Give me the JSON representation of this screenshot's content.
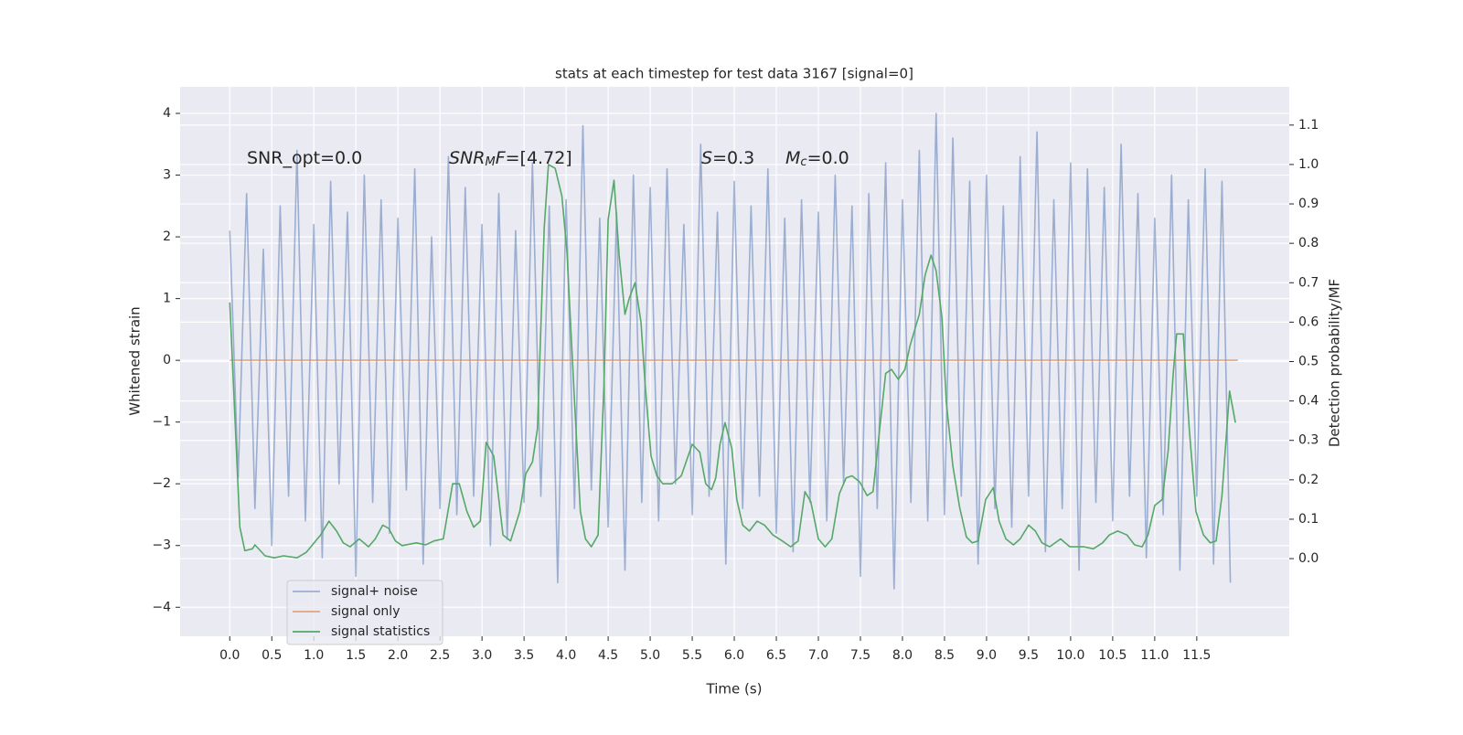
{
  "chart_data": {
    "type": "line",
    "title": "stats at each timestep for test data 3167 [signal=0]",
    "xlabel": "Time (s)",
    "ylabel": "Whitened strain",
    "y2label": "Detection probability/MF",
    "xlim": [
      -0.59,
      12.6
    ],
    "ylim": [
      -4.47,
      4.43
    ],
    "y2lim": [
      -0.197,
      1.197
    ],
    "xticks": [
      {
        "value": 0,
        "label": "0.0"
      },
      0.5,
      {
        "value": 1,
        "label": "1.0"
      },
      1.5,
      {
        "value": 2,
        "label": "2.0"
      },
      2.5,
      {
        "value": 3,
        "label": "3.0"
      },
      3.5,
      {
        "value": 4,
        "label": "4.0"
      },
      4.5,
      {
        "value": 5,
        "label": "5.0"
      },
      5.5,
      {
        "value": 6,
        "label": "6.0"
      },
      6.5,
      {
        "value": 7,
        "label": "7.0"
      },
      7.5,
      {
        "value": 8,
        "label": "8.0"
      },
      8.5,
      {
        "value": 9,
        "label": "9.0"
      },
      9.5,
      {
        "value": 10,
        "label": "10.0"
      },
      10.5,
      {
        "value": 11,
        "label": "11.0"
      },
      11.5
    ],
    "yticks": [
      {
        "value": -4,
        "label": "−4"
      },
      {
        "value": -3,
        "label": "−3"
      },
      {
        "value": -2,
        "label": "−2"
      },
      {
        "value": -1,
        "label": "−1"
      },
      0,
      1,
      2,
      3,
      4
    ],
    "y2ticks": [
      {
        "value": 0,
        "label": "0.0"
      },
      0.1,
      0.2,
      0.3,
      0.4,
      0.5,
      0.6,
      0.7,
      0.8,
      0.9,
      {
        "value": 1,
        "label": "1.0"
      },
      1.1
    ],
    "grid": true,
    "annotations": [
      [
        {
          "text": "SNR_opt=0.0",
          "style": "normal"
        }
      ],
      [
        {
          "text": "SNR",
          "style": "italic"
        },
        {
          "text": "M",
          "style": "sub"
        },
        {
          "text": "F",
          "style": "italic"
        },
        {
          "text": "=[4.72]",
          "style": "normal"
        }
      ],
      [
        {
          "text": "S",
          "style": "italic"
        },
        {
          "text": "=0.3",
          "style": "normal"
        }
      ],
      [
        {
          "text": "M",
          "style": "italic"
        },
        {
          "text": "c",
          "style": "sub"
        },
        {
          "text": "=0.0",
          "style": "normal"
        }
      ]
    ],
    "series": [
      {
        "name": "signal+ noise",
        "color": "#4c72b0",
        "opacity": 0.5,
        "x": [
          0,
          0.1,
          0.2,
          0.3,
          0.4,
          0.5,
          0.6,
          0.7,
          0.8,
          0.9,
          1,
          1.1,
          1.2,
          1.3,
          1.4,
          1.5,
          1.6,
          1.7,
          1.8,
          1.9,
          2,
          2.1,
          2.2,
          2.3,
          2.4,
          2.5,
          2.6,
          2.7,
          2.8,
          2.9,
          3,
          3.1,
          3.2,
          3.3,
          3.4,
          3.5,
          3.6,
          3.7,
          3.8,
          3.9,
          4,
          4.1,
          4.2,
          4.3,
          4.4,
          4.5,
          4.6,
          4.7,
          4.8,
          4.9,
          5,
          5.1,
          5.2,
          5.3,
          5.4,
          5.5,
          5.6,
          5.7,
          5.8,
          5.9,
          6,
          6.1,
          6.2,
          6.3,
          6.4,
          6.5,
          6.6,
          6.7,
          6.8,
          6.9,
          7,
          7.1,
          7.2,
          7.3,
          7.4,
          7.5,
          7.6,
          7.7,
          7.8,
          7.9,
          8,
          8.1,
          8.2,
          8.3,
          8.4,
          8.5,
          8.6,
          8.7,
          8.8,
          8.9,
          9,
          9.1,
          9.2,
          9.3,
          9.4,
          9.5,
          9.6,
          9.7,
          9.8,
          9.9,
          10,
          10.1,
          10.2,
          10.3,
          10.4,
          10.5,
          10.6,
          10.7,
          10.8,
          10.9,
          11,
          11.1,
          11.2,
          11.3,
          11.4,
          11.5,
          11.6,
          11.7,
          11.8,
          11.9
        ],
        "values": [
          2.1,
          -1.9,
          2.7,
          -2.4,
          1.8,
          -3.0,
          2.5,
          -2.2,
          3.4,
          -2.6,
          2.2,
          -3.2,
          2.9,
          -2.0,
          2.4,
          -3.5,
          3.0,
          -2.3,
          2.6,
          -2.8,
          2.3,
          -2.1,
          3.1,
          -3.3,
          2.0,
          -2.4,
          3.3,
          -2.5,
          2.8,
          -2.2,
          2.2,
          -3.0,
          2.7,
          -2.9,
          2.1,
          -2.3,
          3.2,
          -2.2,
          2.5,
          -3.6,
          2.6,
          -2.4,
          3.8,
          -2.1,
          2.3,
          -2.7,
          2.4,
          -3.4,
          3.0,
          -2.3,
          2.8,
          -2.6,
          3.1,
          -2.0,
          2.2,
          -2.5,
          3.5,
          -2.2,
          2.4,
          -3.3,
          2.9,
          -2.4,
          2.5,
          -2.2,
          3.1,
          -2.8,
          2.3,
          -3.1,
          2.6,
          -2.3,
          2.4,
          -2.6,
          3.0,
          -2.0,
          2.5,
          -3.5,
          2.7,
          -2.4,
          3.2,
          -3.7,
          2.6,
          -2.3,
          3.4,
          -2.6,
          4.0,
          -2.5,
          3.6,
          -2.2,
          2.9,
          -3.3,
          3.0,
          -2.4,
          2.5,
          -2.7,
          3.3,
          -2.2,
          3.7,
          -3.1,
          2.6,
          -2.4,
          3.2,
          -3.4,
          3.1,
          -2.3,
          2.8,
          -2.6,
          3.5,
          -2.2,
          2.7,
          -3.2,
          2.3,
          -2.5,
          3.0,
          -3.4,
          2.6,
          -2.2,
          3.1,
          -3.3,
          2.9,
          -3.6
        ]
      },
      {
        "name": "signal only",
        "color": "#dd8452",
        "opacity": 0.7,
        "x": [
          0,
          11.99
        ],
        "values": [
          0,
          0
        ]
      },
      {
        "name": "signal statistics",
        "color": "#55a868",
        "opacity": 1,
        "axis": "y2",
        "x": [
          0,
          0.12,
          0.18,
          0.27,
          0.3,
          0.42,
          0.53,
          0.64,
          0.8,
          0.91,
          1.08,
          1.18,
          1.27,
          1.35,
          1.43,
          1.54,
          1.65,
          1.73,
          1.82,
          1.89,
          1.97,
          2.05,
          2.22,
          2.33,
          2.43,
          2.54,
          2.65,
          2.73,
          2.82,
          2.9,
          2.98,
          3.05,
          3.14,
          3.25,
          3.34,
          3.45,
          3.52,
          3.6,
          3.66,
          3.74,
          3.79,
          3.87,
          3.95,
          4.01,
          4.1,
          4.17,
          4.23,
          4.3,
          4.38,
          4.45,
          4.5,
          4.57,
          4.63,
          4.7,
          4.75,
          4.82,
          4.89,
          4.94,
          5.01,
          5.08,
          5.15,
          5.26,
          5.37,
          5.45,
          5.5,
          5.59,
          5.66,
          5.73,
          5.78,
          5.83,
          5.89,
          5.97,
          6.03,
          6.1,
          6.18,
          6.27,
          6.36,
          6.46,
          6.57,
          6.67,
          6.76,
          6.84,
          6.91,
          7.0,
          7.08,
          7.16,
          7.25,
          7.33,
          7.4,
          7.49,
          7.58,
          7.65,
          7.73,
          7.8,
          7.87,
          7.95,
          8.03,
          8.09,
          8.2,
          8.27,
          8.34,
          8.4,
          8.47,
          8.52,
          8.6,
          8.68,
          8.76,
          8.83,
          8.9,
          8.99,
          9.08,
          9.15,
          9.23,
          9.32,
          9.4,
          9.5,
          9.58,
          9.66,
          9.75,
          9.88,
          9.99,
          10.16,
          10.27,
          10.38,
          10.46,
          10.56,
          10.67,
          10.76,
          10.85,
          10.92,
          11.0,
          11.09,
          11.16,
          11.22,
          11.26,
          11.34,
          11.41,
          11.49,
          11.58,
          11.66,
          11.73,
          11.8,
          11.89,
          11.96
        ],
        "values": [
          0.65,
          0.08,
          0.02,
          0.025,
          0.035,
          0.007,
          0.002,
          0.007,
          0.002,
          0.016,
          0.06,
          0.095,
          0.07,
          0.04,
          0.03,
          0.05,
          0.03,
          0.05,
          0.085,
          0.077,
          0.045,
          0.033,
          0.04,
          0.035,
          0.045,
          0.05,
          0.19,
          0.19,
          0.12,
          0.08,
          0.095,
          0.295,
          0.26,
          0.06,
          0.045,
          0.12,
          0.215,
          0.245,
          0.33,
          0.84,
          1.0,
          0.99,
          0.92,
          0.78,
          0.4,
          0.12,
          0.05,
          0.03,
          0.06,
          0.44,
          0.86,
          0.96,
          0.77,
          0.62,
          0.66,
          0.7,
          0.6,
          0.44,
          0.26,
          0.21,
          0.19,
          0.19,
          0.21,
          0.26,
          0.29,
          0.27,
          0.19,
          0.175,
          0.205,
          0.29,
          0.345,
          0.28,
          0.15,
          0.085,
          0.07,
          0.095,
          0.085,
          0.06,
          0.045,
          0.03,
          0.045,
          0.17,
          0.145,
          0.05,
          0.03,
          0.05,
          0.165,
          0.205,
          0.21,
          0.195,
          0.16,
          0.17,
          0.33,
          0.47,
          0.48,
          0.455,
          0.48,
          0.54,
          0.62,
          0.72,
          0.77,
          0.73,
          0.61,
          0.4,
          0.235,
          0.13,
          0.055,
          0.04,
          0.045,
          0.15,
          0.18,
          0.095,
          0.05,
          0.035,
          0.05,
          0.085,
          0.07,
          0.04,
          0.03,
          0.05,
          0.03,
          0.03,
          0.025,
          0.04,
          0.06,
          0.07,
          0.06,
          0.035,
          0.03,
          0.06,
          0.135,
          0.15,
          0.275,
          0.47,
          0.57,
          0.57,
          0.33,
          0.12,
          0.06,
          0.04,
          0.045,
          0.16,
          0.425,
          0.345
        ]
      }
    ]
  }
}
